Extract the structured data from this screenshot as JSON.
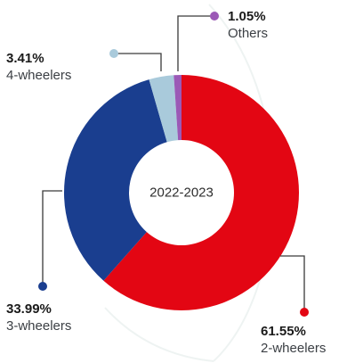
{
  "chart_data": {
    "type": "pie",
    "variant": "donut",
    "center_label": "2022-2023",
    "slices": [
      {
        "label": "2-wheelers",
        "value": 61.55,
        "value_label": "61.55%",
        "color": "#e30613"
      },
      {
        "label": "3-wheelers",
        "value": 33.99,
        "value_label": "33.99%",
        "color": "#1a3e8f"
      },
      {
        "label": "4-wheelers",
        "value": 3.41,
        "value_label": "3.41%",
        "color": "#a9cadb"
      },
      {
        "label": "Others",
        "value": 1.05,
        "value_label": "1.05%",
        "color": "#9b59b6"
      }
    ],
    "legend": "outside labels with leader lines"
  }
}
